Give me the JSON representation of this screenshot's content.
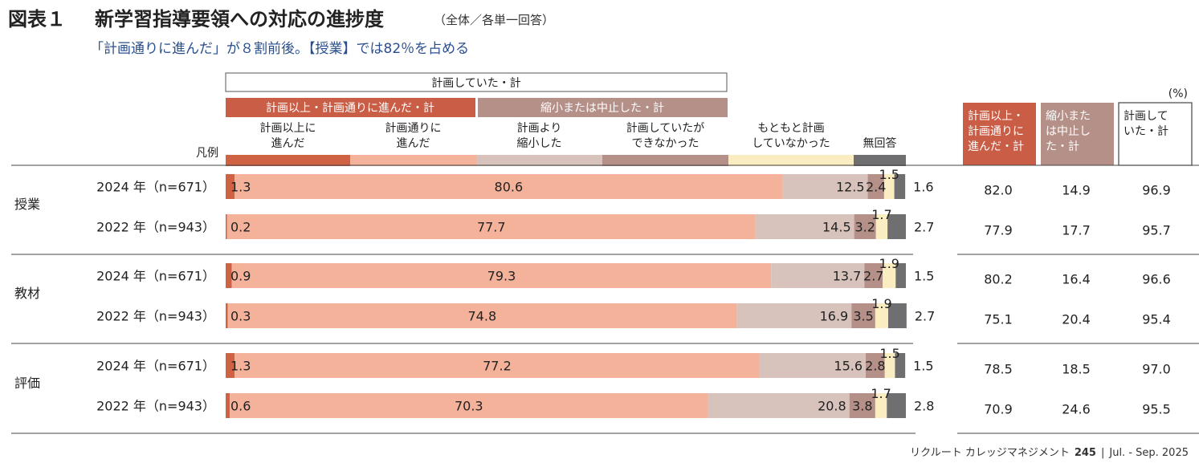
{
  "header": {
    "figure_no": "図表１",
    "title": "新学習指導要領への対応の進捗度",
    "title_note": "（全体／各単一回答）",
    "subtitle": "「計画通りに進んだ」が８割前後。【授業】では82％を占める"
  },
  "unit": "(%)",
  "legend_label": "凡例",
  "group_headers": {
    "planned_total": "計画していた・計",
    "advanced_total": "計画以上・計画通りに進んだ・計",
    "reduced_total": "縮小または中止した・計"
  },
  "summary_headers": [
    "計画以上・計画通りに進んだ・計",
    "縮小または中止した・計",
    "計画していた・計"
  ],
  "colors": {
    "over": "#d06244",
    "asplan": "#f4b29b",
    "reduced": "#d7c3bc",
    "couldnot": "#b59088",
    "noplan": "#fbedc2",
    "noanswer": "#6f6f71",
    "advanced_header": "#ca5d45",
    "reduced_header": "#b59088",
    "subtitle": "#2a4f8f"
  },
  "footer": {
    "publication": "リクルート カレッジマネジメント",
    "issue": "245",
    "period": "Jul. - Sep. 2025"
  },
  "chart_data": {
    "type": "bar",
    "orientation": "horizontal",
    "stacked": true,
    "xlim": [
      0,
      100
    ],
    "series": [
      {
        "key": "over",
        "name": "計画以上に進んだ"
      },
      {
        "key": "asplan",
        "name": "計画通りに進んだ"
      },
      {
        "key": "reduced",
        "name": "計画より縮小した"
      },
      {
        "key": "couldnot",
        "name": "計画していたができなかった"
      },
      {
        "key": "noplan",
        "name": "もともと計画していなかった"
      },
      {
        "key": "noanswer",
        "name": "無回答"
      }
    ],
    "groups": [
      {
        "name": "授業",
        "rows": [
          {
            "label": "2024 年（n=671）",
            "values": [
              1.3,
              80.6,
              12.5,
              2.4,
              1.5,
              1.6
            ],
            "summary": [
              82.0,
              14.9,
              96.9
            ]
          },
          {
            "label": "2022 年（n=943）",
            "values": [
              0.2,
              77.7,
              14.5,
              3.2,
              1.7,
              2.7
            ],
            "summary": [
              77.9,
              17.7,
              95.7
            ]
          }
        ]
      },
      {
        "name": "教材",
        "rows": [
          {
            "label": "2024 年（n=671）",
            "values": [
              0.9,
              79.3,
              13.7,
              2.7,
              1.9,
              1.5
            ],
            "summary": [
              80.2,
              16.4,
              96.6
            ]
          },
          {
            "label": "2022 年（n=943）",
            "values": [
              0.3,
              74.8,
              16.9,
              3.5,
              1.9,
              2.7
            ],
            "summary": [
              75.1,
              20.4,
              95.4
            ]
          }
        ]
      },
      {
        "name": "評価",
        "rows": [
          {
            "label": "2024 年（n=671）",
            "values": [
              1.3,
              77.2,
              15.6,
              2.8,
              1.5,
              1.5
            ],
            "summary": [
              78.5,
              18.5,
              97.0
            ]
          },
          {
            "label": "2022 年（n=943）",
            "values": [
              0.6,
              70.3,
              20.8,
              3.8,
              1.7,
              2.8
            ],
            "summary": [
              70.9,
              24.6,
              95.5
            ]
          }
        ]
      }
    ]
  }
}
